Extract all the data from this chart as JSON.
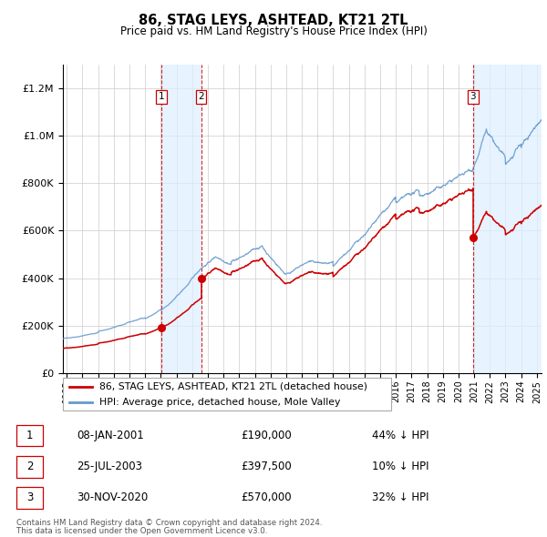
{
  "title": "86, STAG LEYS, ASHTEAD, KT21 2TL",
  "subtitle": "Price paid vs. HM Land Registry's House Price Index (HPI)",
  "legend_line1": "86, STAG LEYS, ASHTEAD, KT21 2TL (detached house)",
  "legend_line2": "HPI: Average price, detached house, Mole Valley",
  "footer1": "Contains HM Land Registry data © Crown copyright and database right 2024.",
  "footer2": "This data is licensed under the Open Government Licence v3.0.",
  "sales": [
    {
      "date_num": 2001.03,
      "price": 190000,
      "label": "1",
      "date_str": "08-JAN-2001",
      "pct": "44% ↓ HPI"
    },
    {
      "date_num": 2003.57,
      "price": 397500,
      "label": "2",
      "date_str": "25-JUL-2003",
      "pct": "10% ↓ HPI"
    },
    {
      "date_num": 2020.92,
      "price": 570000,
      "label": "3",
      "date_str": "30-NOV-2020",
      "pct": "32% ↓ HPI"
    }
  ],
  "sale_color": "#cc0000",
  "hpi_color": "#6699cc",
  "background_color": "#ffffff",
  "grid_color": "#cccccc",
  "shade_color": "#ddeeff",
  "xmin": 1994.75,
  "xmax": 2025.3,
  "ymin": 0,
  "ymax": 1300000,
  "yticks": [
    0,
    200000,
    400000,
    600000,
    800000,
    1000000,
    1200000
  ],
  "xticks_start": 1995,
  "xticks_end": 2025
}
